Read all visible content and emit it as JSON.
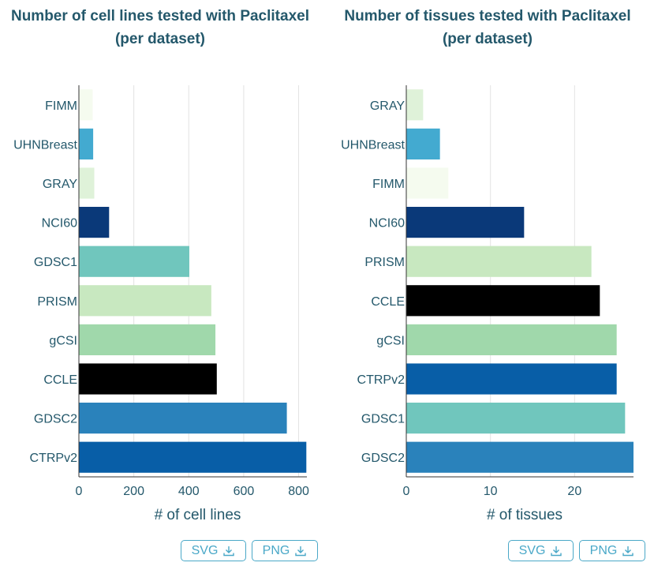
{
  "colors": {
    "title": "#24586b",
    "axis_text": "#24586b",
    "grid": "#e3e3e3",
    "button": "#4aa8c8"
  },
  "icons": {
    "download": "download-icon"
  },
  "buttons": {
    "svg_label": "SVG",
    "png_label": "PNG"
  },
  "chart_data": [
    {
      "type": "bar",
      "orientation": "horizontal",
      "title_lines": [
        "Number of cell lines tested with Paclitaxel",
        "(per dataset)"
      ],
      "xlabel": "# of cell lines",
      "ylabel": "",
      "xlim": [
        0,
        830
      ],
      "xticks": [
        0,
        200,
        400,
        600,
        800
      ],
      "grid": true,
      "categories": [
        "FIMM",
        "UHNBreast",
        "GRAY",
        "NCI60",
        "GDSC1",
        "PRISM",
        "gCSI",
        "CCLE",
        "GDSC2",
        "CTRPv2"
      ],
      "values": [
        50,
        52,
        56,
        110,
        402,
        482,
        497,
        502,
        757,
        828
      ],
      "colors": [
        "#f5fbef",
        "#43aad0",
        "#dff2d9",
        "#0a3979",
        "#70c6bd",
        "#c8e8c0",
        "#a0d8ab",
        "#000000",
        "#2a82bb",
        "#085ea7"
      ]
    },
    {
      "type": "bar",
      "orientation": "horizontal",
      "title_lines": [
        "Number of tissues tested with Paclitaxel",
        "(per dataset)"
      ],
      "xlabel": "# of tissues",
      "ylabel": "",
      "xlim": [
        0,
        27
      ],
      "xticks": [
        0,
        10,
        20
      ],
      "grid": true,
      "categories": [
        "GRAY",
        "UHNBreast",
        "FIMM",
        "NCI60",
        "PRISM",
        "CCLE",
        "gCSI",
        "CTRPv2",
        "GDSC1",
        "GDSC2"
      ],
      "values": [
        2,
        4,
        5,
        14,
        22,
        23,
        25,
        25,
        26,
        27
      ],
      "colors": [
        "#dff2d9",
        "#43aad0",
        "#f5fbef",
        "#0a3979",
        "#c8e8c0",
        "#000000",
        "#a0d8ab",
        "#085ea7",
        "#70c6bd",
        "#2a82bb"
      ]
    }
  ]
}
